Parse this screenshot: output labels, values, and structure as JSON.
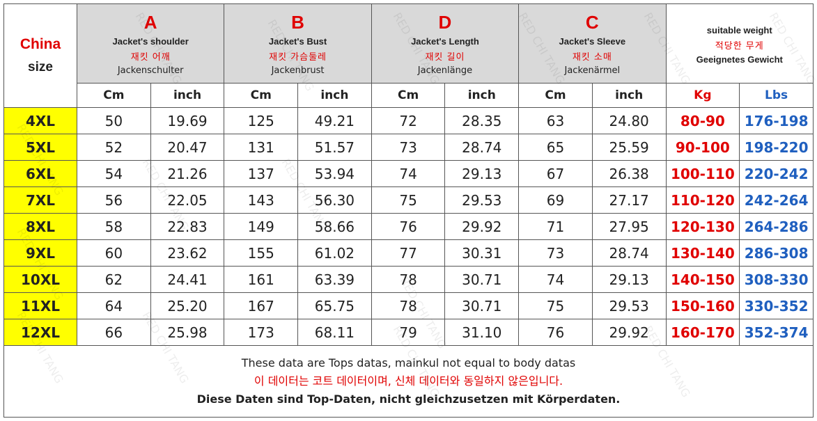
{
  "header": {
    "china": "China",
    "size": "size",
    "groups": [
      {
        "letter": "A",
        "en": "Jacket's shoulder",
        "ko": "재킷 어깨",
        "de": "Jackenschulter"
      },
      {
        "letter": "B",
        "en": "Jacket's Bust",
        "ko": "재킷 가슴둘레",
        "de": "Jackenbrust"
      },
      {
        "letter": "D",
        "en": "Jacket's Length",
        "ko": "재킷 길이",
        "de": "Jackenlänge"
      },
      {
        "letter": "C",
        "en": "Jacket's Sleeve",
        "ko": "재킷 소매",
        "de": "Jackenärmel"
      }
    ],
    "weight": {
      "en": "suitable weight",
      "ko": "적당한 무게",
      "de": "Geeignetes Gewicht"
    }
  },
  "units": [
    "Cm",
    "inch",
    "Cm",
    "inch",
    "Cm",
    "inch",
    "Cm",
    "inch",
    "Kg",
    "Lbs"
  ],
  "rows": [
    [
      "4XL",
      "50",
      "19.69",
      "125",
      "49.21",
      "72",
      "28.35",
      "63",
      "24.80",
      "80-90",
      "176-198"
    ],
    [
      "5XL",
      "52",
      "20.47",
      "131",
      "51.57",
      "73",
      "28.74",
      "65",
      "25.59",
      "90-100",
      "198-220"
    ],
    [
      "6XL",
      "54",
      "21.26",
      "137",
      "53.94",
      "74",
      "29.13",
      "67",
      "26.38",
      "100-110",
      "220-242"
    ],
    [
      "7XL",
      "56",
      "22.05",
      "143",
      "56.30",
      "75",
      "29.53",
      "69",
      "27.17",
      "110-120",
      "242-264"
    ],
    [
      "8XL",
      "58",
      "22.83",
      "149",
      "58.66",
      "76",
      "29.92",
      "71",
      "27.95",
      "120-130",
      "264-286"
    ],
    [
      "9XL",
      "60",
      "23.62",
      "155",
      "61.02",
      "77",
      "30.31",
      "73",
      "28.74",
      "130-140",
      "286-308"
    ],
    [
      "10XL",
      "62",
      "24.41",
      "161",
      "63.39",
      "78",
      "30.71",
      "74",
      "29.13",
      "140-150",
      "308-330"
    ],
    [
      "11XL",
      "64",
      "25.20",
      "167",
      "65.75",
      "78",
      "30.71",
      "75",
      "29.53",
      "150-160",
      "330-352"
    ],
    [
      "12XL",
      "66",
      "25.98",
      "173",
      "68.11",
      "79",
      "31.10",
      "76",
      "29.92",
      "160-170",
      "352-374"
    ]
  ],
  "footer": [
    "These data are Tops datas, mainkul not equal to body datas",
    "이 데이터는 코트 데이터이며, 신체 데이터와 동일하지 않은입니다.",
    "Diese Daten sind Top-Daten, nicht gleichzusetzen mit Körperdaten."
  ],
  "watermark": "RED CHI TANG"
}
